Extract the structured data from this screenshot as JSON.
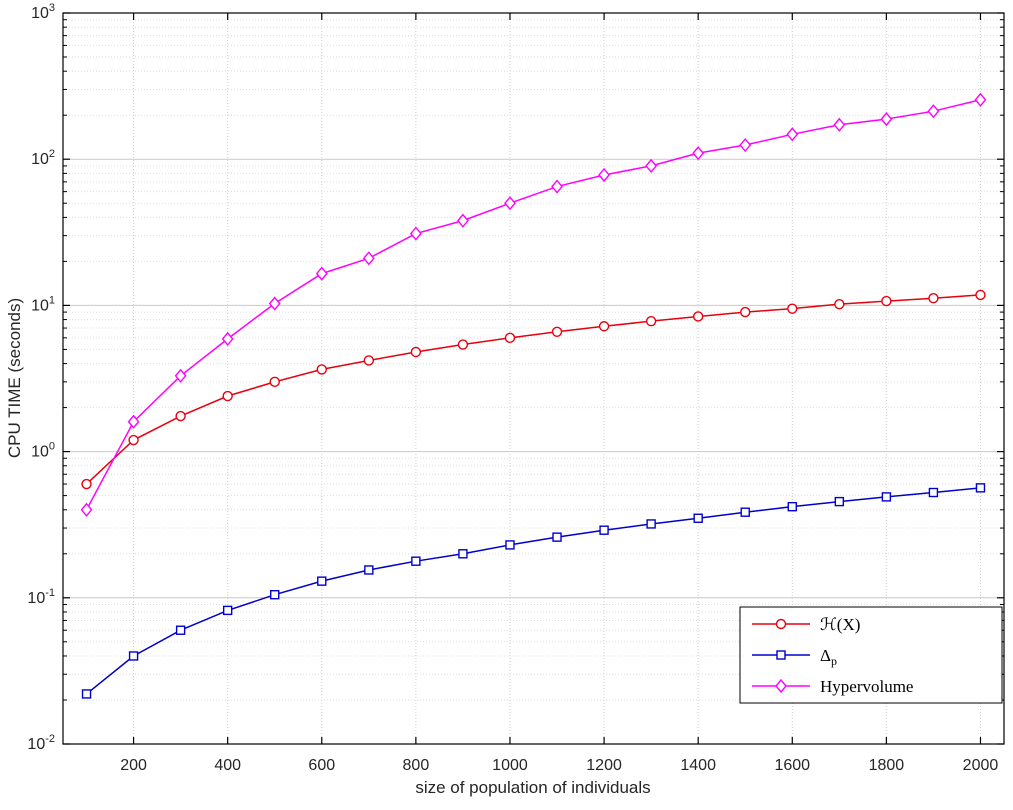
{
  "figure": {
    "background": "#ffffff"
  },
  "chart_data": {
    "type": "line",
    "title": "",
    "xlabel": "size of population of individuals",
    "ylabel": "CPU TIME (seconds)",
    "xscale": "linear",
    "yscale": "log",
    "xlim": [
      50,
      2050
    ],
    "ylim": [
      0.01,
      1000
    ],
    "xticks": [
      200,
      400,
      600,
      800,
      1000,
      1200,
      1400,
      1600,
      1800,
      2000
    ],
    "ytick_labels": [
      "10^-2",
      "10^-1",
      "10^0",
      "10^1",
      "10^2",
      "10^3"
    ],
    "grid": true,
    "legend_position": "lower-right",
    "x": [
      100,
      200,
      300,
      400,
      500,
      600,
      700,
      800,
      900,
      1000,
      1100,
      1200,
      1300,
      1400,
      1500,
      1600,
      1700,
      1800,
      1900,
      2000
    ],
    "series": [
      {
        "name": "H(X)",
        "label": "ℋ(X)",
        "color": "#e8000e",
        "marker": "circle",
        "values": [
          0.6,
          1.2,
          1.75,
          2.4,
          3.0,
          3.65,
          4.2,
          4.8,
          5.4,
          6.0,
          6.6,
          7.2,
          7.8,
          8.4,
          9.0,
          9.5,
          10.2,
          10.7,
          11.2,
          11.8
        ]
      },
      {
        "name": "Delta_p",
        "label": "Δ_p",
        "color": "#0000cd",
        "marker": "square",
        "values": [
          0.022,
          0.04,
          0.06,
          0.082,
          0.105,
          0.13,
          0.155,
          0.178,
          0.2,
          0.23,
          0.26,
          0.29,
          0.32,
          0.35,
          0.385,
          0.42,
          0.455,
          0.49,
          0.525,
          0.565
        ]
      },
      {
        "name": "Hypervolume",
        "label": "Hypervolume",
        "color": "#ff00ff",
        "marker": "diamond",
        "values": [
          0.4,
          1.6,
          3.3,
          5.9,
          10.3,
          16.5,
          21.0,
          31.0,
          38.0,
          50.0,
          65.0,
          78.0,
          90.0,
          110,
          125,
          148,
          172,
          188,
          213,
          255
        ]
      }
    ]
  }
}
